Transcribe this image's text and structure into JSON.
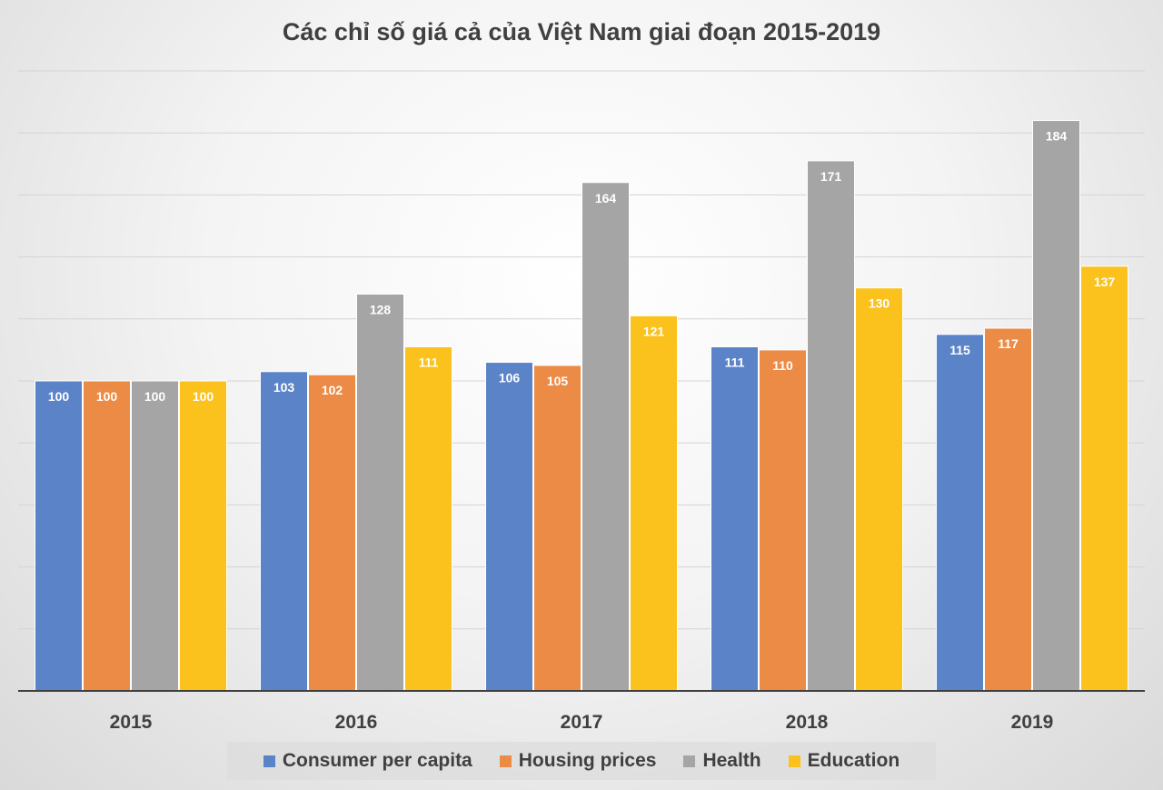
{
  "chart_data": {
    "type": "bar",
    "title": "Các chỉ số giá cả của Việt Nam giai đoạn 2015-2019",
    "categories": [
      "2015",
      "2016",
      "2017",
      "2018",
      "2019"
    ],
    "series": [
      {
        "name": "Consumer per capita",
        "color": "#5b84c8",
        "values": [
          100,
          103,
          106,
          111,
          115
        ]
      },
      {
        "name": "Housing prices",
        "color": "#ec8b46",
        "values": [
          100,
          102,
          105,
          110,
          117
        ]
      },
      {
        "name": "Health",
        "color": "#a5a5a5",
        "values": [
          100,
          128,
          164,
          171,
          184
        ]
      },
      {
        "name": "Education",
        "color": "#fbc21d",
        "values": [
          100,
          111,
          121,
          130,
          137
        ]
      }
    ],
    "ylim": [
      0,
      200
    ],
    "grid": true,
    "legend": "bottom",
    "data_labels": true
  }
}
